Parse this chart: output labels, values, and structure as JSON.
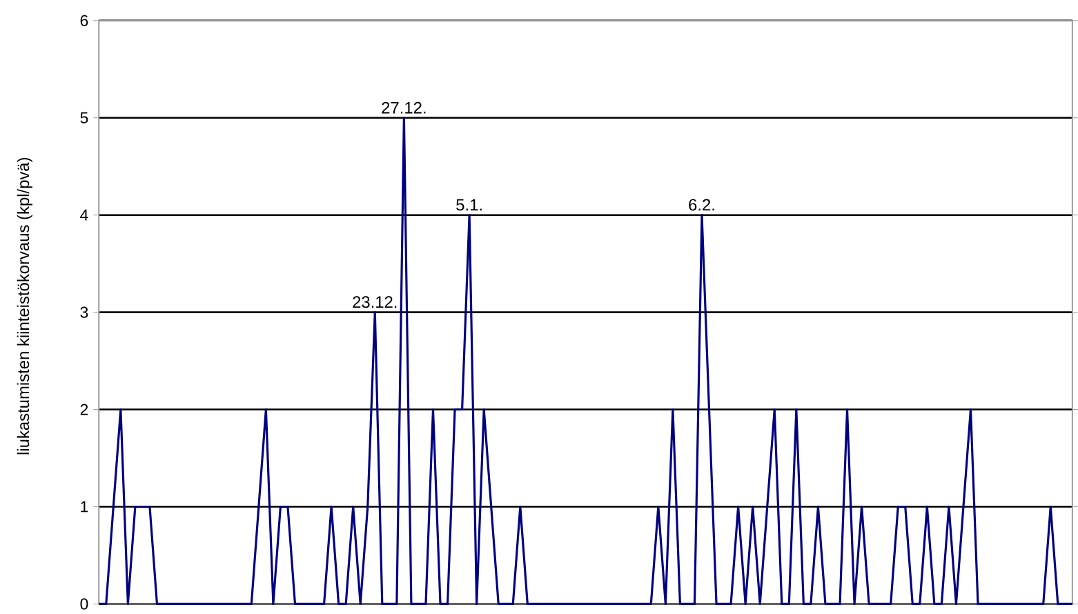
{
  "chart_data": {
    "type": "line",
    "ylabel": "liukastumisten kiinteistökorvaus (kpl/pvä)",
    "categories": [
      null,
      null,
      null,
      null,
      null,
      null,
      null,
      null,
      null,
      null,
      null,
      null,
      null,
      null,
      null,
      null,
      null,
      null,
      null,
      null,
      null,
      null,
      null,
      null,
      null,
      null,
      null,
      null,
      null,
      null,
      null,
      null,
      null,
      null,
      null,
      null,
      null,
      null,
      null,
      null,
      null,
      null,
      null,
      null,
      null,
      null,
      null,
      null,
      null,
      null,
      null,
      null,
      null,
      null,
      null,
      null,
      null,
      null,
      null,
      null,
      null,
      null,
      null,
      null,
      null,
      null,
      null,
      null,
      null,
      null,
      null,
      null,
      null,
      null,
      null,
      null,
      null,
      null,
      null,
      null,
      null,
      null,
      null,
      null,
      null,
      null,
      null,
      null,
      null,
      null,
      null,
      null,
      null,
      null,
      null,
      null,
      null,
      null,
      null,
      null,
      null,
      null,
      null,
      null,
      null,
      null,
      null,
      null,
      null,
      null,
      null,
      null,
      null,
      null,
      null,
      null,
      null,
      null,
      null,
      null,
      null,
      null,
      null,
      null,
      null,
      null,
      null,
      null,
      null,
      null,
      null,
      null,
      null,
      null,
      null
    ],
    "series": [
      {
        "color": "#000080",
        "values": [
          0,
          0,
          1,
          2,
          0,
          1,
          1,
          1,
          0,
          0,
          0,
          0,
          0,
          0,
          0,
          0,
          0,
          0,
          0,
          0,
          0,
          0,
          1,
          2,
          0,
          1,
          1,
          0,
          0,
          0,
          0,
          0,
          1,
          0,
          0,
          1,
          0,
          1,
          3,
          0,
          0,
          0,
          5,
          0,
          0,
          0,
          2,
          0,
          0,
          2,
          2,
          4,
          0,
          2,
          1,
          0,
          0,
          0,
          1,
          0,
          0,
          0,
          0,
          0,
          0,
          0,
          0,
          0,
          0,
          0,
          0,
          0,
          0,
          0,
          0,
          0,
          0,
          1,
          0,
          2,
          0,
          0,
          0,
          4,
          2,
          0,
          0,
          0,
          1,
          0,
          1,
          0,
          1,
          2,
          0,
          0,
          2,
          0,
          0,
          1,
          0,
          0,
          0,
          2,
          0,
          1,
          0,
          0,
          0,
          0,
          1,
          1,
          0,
          0,
          1,
          0,
          0,
          1,
          0,
          1,
          2,
          0,
          0,
          0,
          0,
          0,
          0,
          0,
          0,
          0,
          0,
          1,
          0,
          0,
          0
        ]
      }
    ],
    "annotations": [
      {
        "text": "23.12.",
        "y": 3
      },
      {
        "text": "27.12.",
        "y": 5
      },
      {
        "text": "5.1.",
        "y": 4
      },
      {
        "text": "6.2.",
        "y": 4
      }
    ],
    "ylim": [
      0,
      6
    ],
    "yticks": [
      0,
      1,
      2,
      3,
      4,
      5,
      6
    ],
    "grid": "y",
    "marker": "none",
    "line_style": "solid"
  }
}
